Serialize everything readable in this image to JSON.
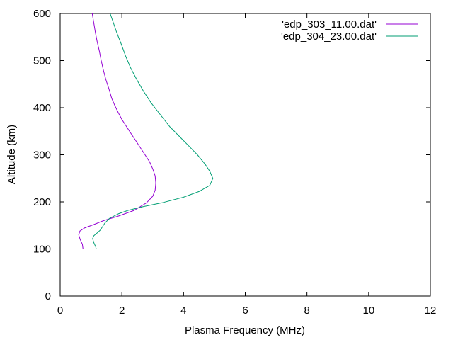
{
  "chart_data": {
    "type": "line",
    "title": "",
    "xlabel": "Plasma Frequency (MHz)",
    "ylabel": "Altitude (km)",
    "xlim": [
      0,
      12
    ],
    "ylim": [
      0,
      600
    ],
    "x_ticks": [
      "0",
      "2",
      "4",
      "6",
      "8",
      "10",
      "12"
    ],
    "y_ticks": [
      "0",
      "100",
      "200",
      "300",
      "400",
      "500",
      "600"
    ],
    "grid": false,
    "legend_position": "top-right",
    "series": [
      {
        "name": "'edp_303_11.00.dat'",
        "color": "#9400d3",
        "points": [
          [
            0.74,
            100
          ],
          [
            0.72,
            110
          ],
          [
            0.65,
            120
          ],
          [
            0.6,
            130
          ],
          [
            0.64,
            138
          ],
          [
            0.8,
            145
          ],
          [
            1.1,
            152
          ],
          [
            1.4,
            160
          ],
          [
            1.9,
            170
          ],
          [
            2.4,
            182
          ],
          [
            2.8,
            198
          ],
          [
            3.0,
            212
          ],
          [
            3.08,
            225
          ],
          [
            3.1,
            240
          ],
          [
            3.08,
            255
          ],
          [
            3.0,
            270
          ],
          [
            2.9,
            285
          ],
          [
            2.75,
            300
          ],
          [
            2.6,
            315
          ],
          [
            2.45,
            330
          ],
          [
            2.3,
            345
          ],
          [
            2.15,
            360
          ],
          [
            2.0,
            375
          ],
          [
            1.88,
            390
          ],
          [
            1.77,
            405
          ],
          [
            1.67,
            420
          ],
          [
            1.58,
            440
          ],
          [
            1.48,
            460
          ],
          [
            1.4,
            480
          ],
          [
            1.33,
            500
          ],
          [
            1.27,
            520
          ],
          [
            1.2,
            540
          ],
          [
            1.14,
            560
          ],
          [
            1.09,
            580
          ],
          [
            1.04,
            600
          ]
        ]
      },
      {
        "name": "'edp_304_23.00.dat'",
        "color": "#009e73",
        "points": [
          [
            1.17,
            100
          ],
          [
            1.15,
            105
          ],
          [
            1.1,
            112
          ],
          [
            1.07,
            118
          ],
          [
            1.05,
            122
          ],
          [
            1.09,
            128
          ],
          [
            1.2,
            134
          ],
          [
            1.3,
            140
          ],
          [
            1.38,
            148
          ],
          [
            1.45,
            155
          ],
          [
            1.6,
            165
          ],
          [
            1.9,
            175
          ],
          [
            2.2,
            182
          ],
          [
            2.7,
            190
          ],
          [
            3.3,
            198
          ],
          [
            4.0,
            210
          ],
          [
            4.5,
            222
          ],
          [
            4.85,
            235
          ],
          [
            4.95,
            250
          ],
          [
            4.85,
            265
          ],
          [
            4.7,
            280
          ],
          [
            4.45,
            300
          ],
          [
            4.15,
            320
          ],
          [
            3.85,
            340
          ],
          [
            3.55,
            360
          ],
          [
            3.25,
            385
          ],
          [
            2.95,
            410
          ],
          [
            2.7,
            435
          ],
          [
            2.48,
            460
          ],
          [
            2.28,
            485
          ],
          [
            2.12,
            510
          ],
          [
            1.98,
            535
          ],
          [
            1.83,
            560
          ],
          [
            1.7,
            585
          ],
          [
            1.62,
            600
          ]
        ]
      }
    ]
  }
}
